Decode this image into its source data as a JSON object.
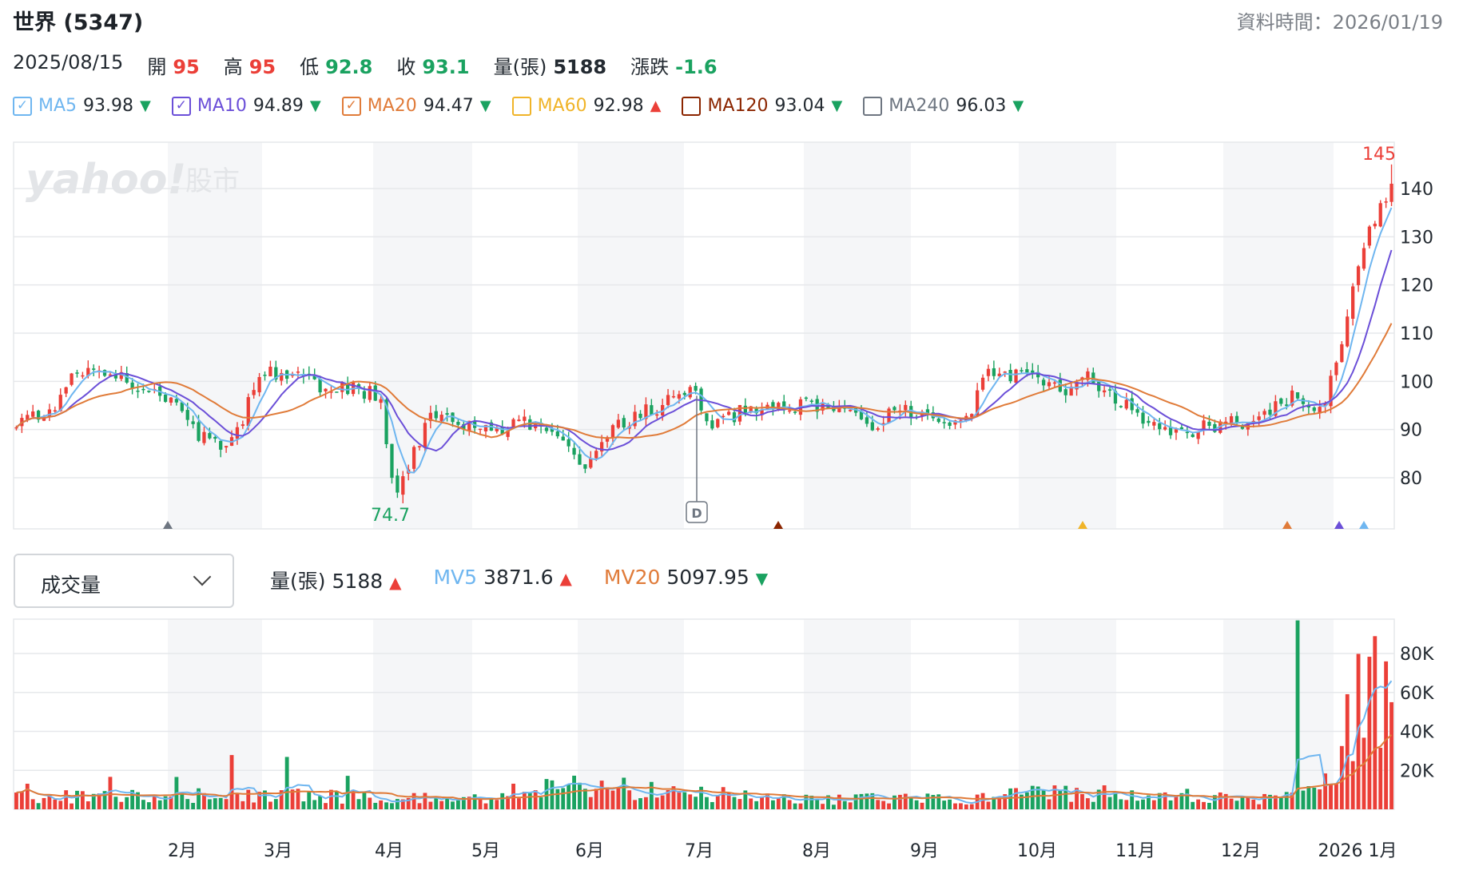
{
  "header": {
    "title": "世界 (5347)",
    "updated_label": "資料時間：2026/01/19"
  },
  "ohlc": {
    "date": "2025/08/15",
    "open_label": "開",
    "open": "95",
    "high_label": "高",
    "high": "95",
    "low_label": "低",
    "low": "92.8",
    "close_label": "收",
    "close": "93.1",
    "volume_label": "量(張)",
    "volume": "5188",
    "change_label": "漲跌",
    "change": "-1.6"
  },
  "ma_legend": [
    {
      "name": "MA5",
      "value": "93.98",
      "dir": "down",
      "color": "#6fb6f0",
      "checked": true
    },
    {
      "name": "MA10",
      "value": "94.89",
      "dir": "down",
      "color": "#6b4fd8",
      "checked": true
    },
    {
      "name": "MA20",
      "value": "94.47",
      "dir": "down",
      "color": "#e07b39",
      "checked": true
    },
    {
      "name": "MA60",
      "value": "92.98",
      "dir": "up",
      "color": "#f0b429",
      "checked": false
    },
    {
      "name": "MA120",
      "value": "93.04",
      "dir": "down",
      "color": "#8b2500",
      "checked": false
    },
    {
      "name": "MA240",
      "value": "96.03",
      "dir": "down",
      "color": "#6e7681",
      "checked": false
    }
  ],
  "watermark": {
    "brand": "yahoo!",
    "sub": "股市"
  },
  "volume_panel": {
    "selector_label": "成交量",
    "items": [
      {
        "name": "量(張)",
        "value": "5188",
        "dir": "up",
        "color": "#232a31"
      },
      {
        "name": "MV5",
        "value": "3871.6",
        "dir": "up",
        "color": "#6fb6f0"
      },
      {
        "name": "MV20",
        "value": "5097.95",
        "dir": "down",
        "color": "#e07b39"
      }
    ]
  },
  "colors": {
    "up": "#eb3f38",
    "down": "#1aa260",
    "grid": "#e6e8eb",
    "band": "#f5f6f8"
  },
  "chart_data": {
    "type": "candlestick",
    "x_range": [
      "2025-01-02",
      "2026-01-19"
    ],
    "price_axis": {
      "ticks": [
        80,
        90,
        100,
        110,
        120,
        130,
        140
      ],
      "range": [
        70,
        150
      ]
    },
    "volume_axis": {
      "ticks": [
        "20K",
        "40K",
        "60K",
        "80K"
      ],
      "tick_values": [
        20000,
        40000,
        60000,
        80000
      ],
      "range": [
        0,
        100000
      ]
    },
    "month_labels": [
      "2月",
      "3月",
      "4月",
      "5月",
      "6月",
      "7月",
      "8月",
      "9月",
      "10月",
      "11月",
      "12月",
      "2026 1月"
    ],
    "annotations": {
      "max_label": "145",
      "max_value": 145,
      "min_label": "74.7",
      "min_value": 74.7,
      "event_marker": "D"
    },
    "price_anchors": [
      {
        "t": 0,
        "v": 91
      },
      {
        "t": 0.03,
        "v": 95
      },
      {
        "t": 0.04,
        "v": 101
      },
      {
        "t": 0.07,
        "v": 102
      },
      {
        "t": 0.1,
        "v": 97
      },
      {
        "t": 0.12,
        "v": 95
      },
      {
        "t": 0.13,
        "v": 89
      },
      {
        "t": 0.15,
        "v": 87
      },
      {
        "t": 0.165,
        "v": 92
      },
      {
        "t": 0.175,
        "v": 101
      },
      {
        "t": 0.19,
        "v": 102
      },
      {
        "t": 0.22,
        "v": 99
      },
      {
        "t": 0.25,
        "v": 98
      },
      {
        "t": 0.265,
        "v": 97
      },
      {
        "t": 0.275,
        "v": 76
      },
      {
        "t": 0.285,
        "v": 83
      },
      {
        "t": 0.3,
        "v": 92
      },
      {
        "t": 0.33,
        "v": 91
      },
      {
        "t": 0.35,
        "v": 89
      },
      {
        "t": 0.37,
        "v": 92
      },
      {
        "t": 0.4,
        "v": 86
      },
      {
        "t": 0.415,
        "v": 81
      },
      {
        "t": 0.43,
        "v": 89
      },
      {
        "t": 0.45,
        "v": 93
      },
      {
        "t": 0.47,
        "v": 95
      },
      {
        "t": 0.49,
        "v": 99
      },
      {
        "t": 0.505,
        "v": 91
      },
      {
        "t": 0.53,
        "v": 94
      },
      {
        "t": 0.56,
        "v": 95
      },
      {
        "t": 0.6,
        "v": 95
      },
      {
        "t": 0.62,
        "v": 90
      },
      {
        "t": 0.64,
        "v": 94
      },
      {
        "t": 0.67,
        "v": 92
      },
      {
        "t": 0.69,
        "v": 91
      },
      {
        "t": 0.705,
        "v": 102
      },
      {
        "t": 0.74,
        "v": 101
      },
      {
        "t": 0.76,
        "v": 98
      },
      {
        "t": 0.78,
        "v": 101
      },
      {
        "t": 0.8,
        "v": 96
      },
      {
        "t": 0.84,
        "v": 89
      },
      {
        "t": 0.87,
        "v": 91
      },
      {
        "t": 0.9,
        "v": 92
      },
      {
        "t": 0.93,
        "v": 97
      },
      {
        "t": 0.95,
        "v": 93
      },
      {
        "t": 0.965,
        "v": 110
      },
      {
        "t": 0.98,
        "v": 128
      },
      {
        "t": 1.0,
        "v": 141
      }
    ],
    "volume_anchors": [
      {
        "t": 0,
        "v": 6000
      },
      {
        "t": 0.1,
        "v": 6500
      },
      {
        "t": 0.16,
        "v": 7000
      },
      {
        "t": 0.26,
        "v": 6000
      },
      {
        "t": 0.33,
        "v": 5000
      },
      {
        "t": 0.4,
        "v": 12000
      },
      {
        "t": 0.48,
        "v": 9000
      },
      {
        "t": 0.56,
        "v": 5000
      },
      {
        "t": 0.7,
        "v": 5000
      },
      {
        "t": 0.74,
        "v": 8000
      },
      {
        "t": 0.85,
        "v": 5000
      },
      {
        "t": 0.93,
        "v": 6000
      },
      {
        "t": 0.96,
        "v": 20000
      },
      {
        "t": 0.975,
        "v": 60000
      },
      {
        "t": 1.0,
        "v": 55000
      }
    ]
  }
}
